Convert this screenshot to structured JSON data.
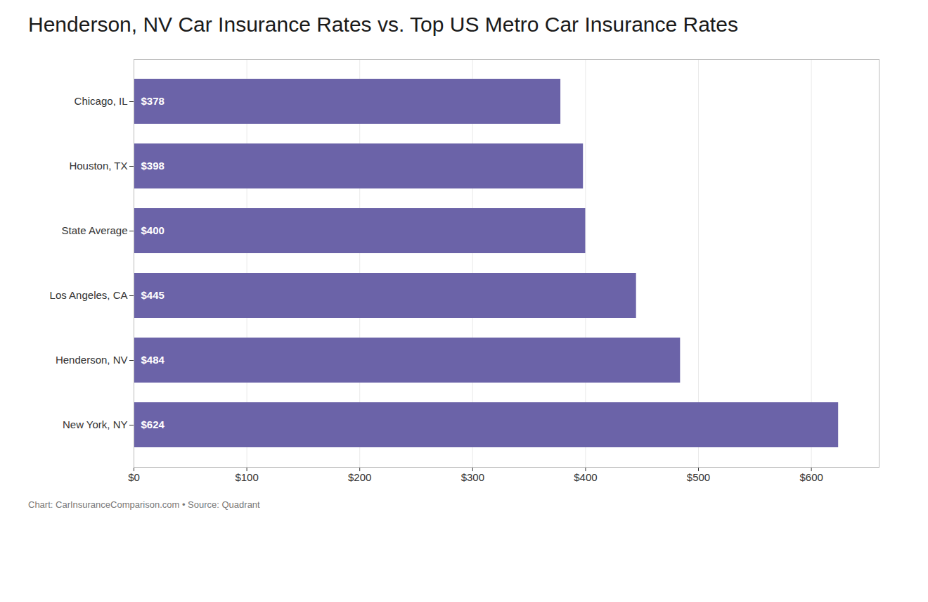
{
  "chart_data": {
    "type": "bar",
    "orientation": "horizontal",
    "title": "Henderson, NV Car Insurance Rates vs. Top US Metro Car Insurance Rates",
    "caption": "Chart: CarInsuranceComparison.com • Source: Quadrant",
    "categories": [
      "Chicago, IL",
      "Houston, TX",
      "State Average",
      "Los Angeles, CA",
      "Henderson, NV",
      "New York, NY"
    ],
    "values": [
      378,
      398,
      400,
      445,
      484,
      624
    ],
    "value_labels": [
      "$378",
      "$398",
      "$400",
      "$445",
      "$484",
      "$624"
    ],
    "data_labels": true,
    "color": "#6B63A8",
    "xlim": [
      0,
      660
    ],
    "xticks": [
      {
        "value": 0,
        "label": "$0"
      },
      {
        "value": 100,
        "label": "$100"
      },
      {
        "value": 200,
        "label": "$200"
      },
      {
        "value": 300,
        "label": "$300"
      },
      {
        "value": 400,
        "label": "$400"
      },
      {
        "value": 500,
        "label": "$500"
      },
      {
        "value": 600,
        "label": "$600"
      }
    ],
    "grid": true
  }
}
